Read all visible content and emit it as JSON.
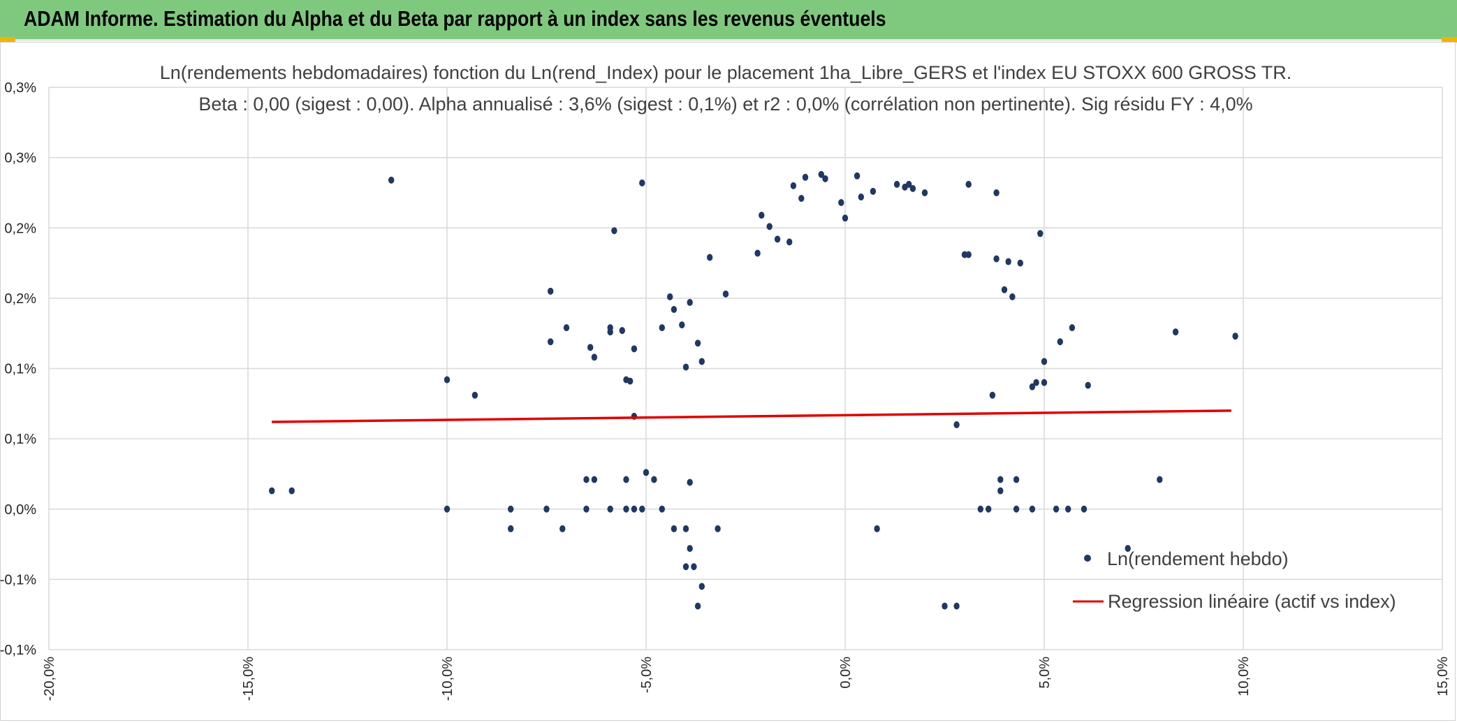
{
  "banner": {
    "title": "ADAM Informe. Estimation du Alpha et du Beta par rapport à un index sans les revenus éventuels"
  },
  "colors": {
    "banner": "#7fc97f",
    "accent_corner": "#f2b400",
    "points": "#1f3864",
    "regression": "#e00000",
    "grid": "#d9d9d9"
  },
  "chart_data": {
    "type": "scatter",
    "title_lines": [
      "Ln(rendements hebdomadaires) fonction du Ln(rend_Index) pour le placement 1ha_Libre_GERS et l'index EU STOXX 600 GROSS TR.",
      "Beta : 0,00 (sigest : 0,00). Alpha annualisé : 3,6% (sigest : 0,1%) et r2 : 0,0% (corrélation non pertinente). Sig résidu FY : 4,0%"
    ],
    "xlim": [
      -0.2,
      0.15
    ],
    "ylim": [
      -0.001,
      0.003
    ],
    "x_ticks": [
      -0.2,
      -0.15,
      -0.1,
      -0.05,
      0.0,
      0.05,
      0.1,
      0.15
    ],
    "x_tick_labels": [
      "-20,0%",
      "-15,0%",
      "-10,0%",
      "-5,0%",
      "0,0%",
      "5,0%",
      "10,0%",
      "15,0%"
    ],
    "y_ticks": [
      -0.001,
      -0.0005,
      0.0,
      0.0005,
      0.001,
      0.0015,
      0.002,
      0.0025,
      0.003
    ],
    "y_tick_labels": [
      "-0,1%",
      "-0,1%",
      "0,0%",
      "0,1%",
      "0,1%",
      "0,2%",
      "0,2%",
      "0,3%",
      "0,3%"
    ],
    "grid": true,
    "legend_position": "bottom-right",
    "series": [
      {
        "name": "Ln(rendement hebdo)",
        "kind": "scatter",
        "points": [
          [
            -0.114,
            0.00234
          ],
          [
            -0.051,
            0.00232
          ],
          [
            -0.058,
            0.00198
          ],
          [
            -0.074,
            0.00155
          ],
          [
            -0.144,
            0.00013
          ],
          [
            -0.139,
            0.00013
          ],
          [
            -0.1,
            0.00092
          ],
          [
            -0.093,
            0.00081
          ],
          [
            -0.1,
            0.0
          ],
          [
            -0.084,
            0.0
          ],
          [
            -0.084,
            -0.00014
          ],
          [
            -0.075,
            0.0
          ],
          [
            -0.07,
            0.00129
          ],
          [
            -0.074,
            0.00119
          ],
          [
            -0.064,
            0.00115
          ],
          [
            -0.063,
            0.00108
          ],
          [
            -0.059,
            0.00126
          ],
          [
            -0.059,
            0.00129
          ],
          [
            -0.056,
            0.00127
          ],
          [
            -0.055,
            0.00092
          ],
          [
            -0.054,
            0.00091
          ],
          [
            -0.053,
            0.00114
          ],
          [
            -0.053,
            0.00066
          ],
          [
            -0.065,
            0.00021
          ],
          [
            -0.063,
            0.00021
          ],
          [
            -0.055,
            0.00021
          ],
          [
            -0.065,
            0.0
          ],
          [
            -0.059,
            0.0
          ],
          [
            -0.055,
            0.0
          ],
          [
            -0.053,
            0.0
          ],
          [
            -0.051,
            0.0
          ],
          [
            -0.046,
            0.0
          ],
          [
            -0.05,
            0.00026
          ],
          [
            -0.048,
            0.00021
          ],
          [
            -0.044,
            0.00151
          ],
          [
            -0.046,
            0.00129
          ],
          [
            -0.043,
            0.00142
          ],
          [
            -0.041,
            0.00131
          ],
          [
            -0.039,
            0.00147
          ],
          [
            -0.037,
            0.00118
          ],
          [
            -0.036,
            0.00105
          ],
          [
            -0.034,
            0.00179
          ],
          [
            -0.04,
            0.00101
          ],
          [
            -0.039,
            0.00019
          ],
          [
            -0.043,
            -0.00014
          ],
          [
            -0.04,
            -0.00014
          ],
          [
            -0.04,
            -0.00041
          ],
          [
            -0.038,
            -0.00041
          ],
          [
            -0.037,
            -0.00069
          ],
          [
            -0.039,
            -0.00028
          ],
          [
            -0.036,
            -0.00055
          ],
          [
            -0.032,
            -0.00014
          ],
          [
            -0.071,
            -0.00014
          ],
          [
            0.008,
            -0.00014
          ],
          [
            0.061,
            0.00088
          ],
          [
            0.071,
            -0.00028
          ],
          [
            0.079,
            0.00021
          ],
          [
            0.083,
            0.00126
          ],
          [
            0.098,
            0.00123
          ],
          [
            0.06,
            0.0
          ],
          [
            0.056,
            0.0
          ],
          [
            0.053,
            0.0
          ],
          [
            0.054,
            0.00119
          ],
          [
            0.057,
            0.00129
          ],
          [
            0.049,
            0.00196
          ],
          [
            0.05,
            0.0009
          ],
          [
            0.05,
            0.00105
          ],
          [
            0.047,
            0.00087
          ],
          [
            0.048,
            0.0009
          ],
          [
            0.044,
            0.00175
          ],
          [
            0.042,
            0.00151
          ],
          [
            0.041,
            0.00176
          ],
          [
            0.038,
            0.00225
          ],
          [
            0.04,
            0.00156
          ],
          [
            0.038,
            0.00178
          ],
          [
            0.037,
            0.00081
          ],
          [
            0.039,
            0.00013
          ],
          [
            0.039,
            0.00021
          ],
          [
            0.043,
            0.00021
          ],
          [
            0.047,
            0.0
          ],
          [
            0.043,
            0.0
          ],
          [
            0.036,
            0.0
          ],
          [
            0.034,
            0.0
          ],
          [
            0.031,
            0.00231
          ],
          [
            0.03,
            0.00181
          ],
          [
            0.031,
            0.00181
          ],
          [
            0.028,
            0.0006
          ],
          [
            0.025,
            -0.00069
          ],
          [
            0.028,
            -0.00069
          ],
          [
            0.017,
            0.00228
          ],
          [
            0.016,
            0.00231
          ],
          [
            0.015,
            0.00229
          ],
          [
            0.02,
            0.00225
          ],
          [
            0.013,
            0.00231
          ],
          [
            0.007,
            0.00226
          ],
          [
            0.004,
            0.00222
          ],
          [
            0.003,
            0.00237
          ],
          [
            -0.001,
            0.00218
          ],
          [
            0.0,
            0.00207
          ],
          [
            -0.005,
            0.00235
          ],
          [
            -0.006,
            0.00238
          ],
          [
            -0.01,
            0.00236
          ],
          [
            -0.013,
            0.0023
          ],
          [
            -0.011,
            0.00221
          ],
          [
            -0.019,
            0.00201
          ],
          [
            -0.022,
            0.00182
          ],
          [
            -0.021,
            0.00209
          ],
          [
            -0.017,
            0.00192
          ],
          [
            -0.014,
            0.0019
          ],
          [
            -0.03,
            0.00153
          ]
        ]
      },
      {
        "name": "Regression linéaire (actif vs index)",
        "kind": "line",
        "x": [
          -0.144,
          0.097
        ],
        "y": [
          0.00062,
          0.0007
        ]
      }
    ]
  }
}
